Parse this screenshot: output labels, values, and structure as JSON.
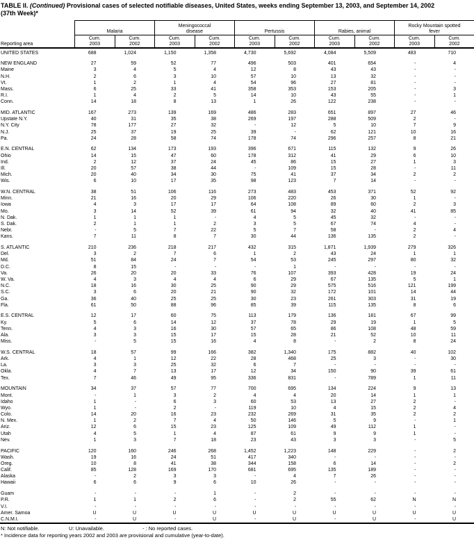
{
  "title": {
    "prefix": "TABLE II.",
    "continued": "(Continued)",
    "rest": "Provisional cases of selected notifiable diseases, United States, weeks ending September 13, 2003, and September 14, 2002",
    "week": "(37th Week)*"
  },
  "table": {
    "stub_header": "Reporting area",
    "cum_label": "Cum.",
    "sub_years": [
      "2003",
      "2002"
    ],
    "column_groups": [
      {
        "label": "Malaria"
      },
      {
        "label": "Meningococcal disease"
      },
      {
        "label": "Pertussis"
      },
      {
        "label": "Rabies, animal"
      },
      {
        "label": "Rocky Mountain spotted fever"
      }
    ],
    "rows": [
      {
        "area": "UNITED STATES",
        "values": [
          "688",
          "1,024",
          "1,150",
          "1,358",
          "4,730",
          "5,692",
          "4,084",
          "5,509",
          "483",
          "710"
        ]
      },
      {
        "area": "NEW ENGLAND",
        "gap_before": true,
        "values": [
          "27",
          "59",
          "52",
          "77",
          "496",
          "503",
          "401",
          "654",
          "-",
          "4"
        ]
      },
      {
        "area": "Maine",
        "values": [
          "3",
          "4",
          "5",
          "4",
          "12",
          "8",
          "43",
          "43",
          "-",
          "-"
        ]
      },
      {
        "area": "N.H.",
        "values": [
          "2",
          "6",
          "3",
          "10",
          "57",
          "10",
          "13",
          "32",
          "-",
          "-"
        ]
      },
      {
        "area": "Vt.",
        "values": [
          "1",
          "2",
          "1",
          "4",
          "54",
          "96",
          "27",
          "81",
          "-",
          "-"
        ]
      },
      {
        "area": "Mass.",
        "values": [
          "6",
          "25",
          "33",
          "41",
          "358",
          "353",
          "153",
          "205",
          "-",
          "3"
        ]
      },
      {
        "area": "R.I.",
        "values": [
          "1",
          "4",
          "2",
          "5",
          "14",
          "10",
          "43",
          "55",
          "-",
          "1"
        ]
      },
      {
        "area": "Conn.",
        "values": [
          "14",
          "18",
          "8",
          "13",
          "1",
          "26",
          "122",
          "238",
          "-",
          "-"
        ]
      },
      {
        "area": "MID. ATLANTIC",
        "gap_before": true,
        "values": [
          "167",
          "273",
          "139",
          "169",
          "486",
          "283",
          "651",
          "897",
          "27",
          "46"
        ]
      },
      {
        "area": "Upstate N.Y.",
        "values": [
          "40",
          "31",
          "35",
          "38",
          "269",
          "197",
          "288",
          "509",
          "2",
          "-"
        ]
      },
      {
        "area": "N.Y. City",
        "values": [
          "78",
          "177",
          "27",
          "32",
          "-",
          "12",
          "5",
          "10",
          "7",
          "9"
        ]
      },
      {
        "area": "N.J.",
        "values": [
          "25",
          "37",
          "19",
          "25",
          "39",
          "-",
          "62",
          "121",
          "10",
          "16"
        ]
      },
      {
        "area": "Pa.",
        "values": [
          "24",
          "28",
          "58",
          "74",
          "178",
          "74",
          "296",
          "257",
          "8",
          "21"
        ]
      },
      {
        "area": "E.N. CENTRAL",
        "gap_before": true,
        "values": [
          "62",
          "134",
          "173",
          "193",
          "396",
          "671",
          "115",
          "132",
          "9",
          "26"
        ]
      },
      {
        "area": "Ohio",
        "values": [
          "14",
          "15",
          "47",
          "60",
          "178",
          "312",
          "41",
          "29",
          "6",
          "10"
        ]
      },
      {
        "area": "Ind.",
        "values": [
          "2",
          "12",
          "37",
          "24",
          "45",
          "86",
          "15",
          "27",
          "1",
          "3"
        ]
      },
      {
        "area": "Ill.",
        "values": [
          "20",
          "57",
          "38",
          "44",
          "-",
          "109",
          "15",
          "28",
          "-",
          "11"
        ]
      },
      {
        "area": "Mich.",
        "values": [
          "20",
          "40",
          "34",
          "30",
          "75",
          "41",
          "37",
          "34",
          "2",
          "2"
        ]
      },
      {
        "area": "Wis.",
        "values": [
          "6",
          "10",
          "17",
          "35",
          "98",
          "123",
          "7",
          "14",
          "-",
          "-"
        ]
      },
      {
        "area": "W.N. CENTRAL",
        "gap_before": true,
        "values": [
          "38",
          "51",
          "106",
          "116",
          "273",
          "483",
          "453",
          "371",
          "52",
          "92"
        ]
      },
      {
        "area": "Minn.",
        "values": [
          "21",
          "16",
          "20",
          "29",
          "106",
          "220",
          "26",
          "30",
          "1",
          "-"
        ]
      },
      {
        "area": "Iowa",
        "values": [
          "4",
          "3",
          "17",
          "17",
          "64",
          "108",
          "89",
          "60",
          "2",
          "3"
        ]
      },
      {
        "area": "Mo.",
        "values": [
          "3",
          "14",
          "52",
          "39",
          "61",
          "94",
          "32",
          "40",
          "41",
          "85"
        ]
      },
      {
        "area": "N. Dak.",
        "values": [
          "1",
          "1",
          "1",
          "-",
          "4",
          "5",
          "45",
          "32",
          "-",
          "-"
        ]
      },
      {
        "area": "S. Dak.",
        "values": [
          "2",
          "1",
          "1",
          "2",
          "3",
          "5",
          "67",
          "74",
          "4",
          "-"
        ]
      },
      {
        "area": "Nebr.",
        "values": [
          "-",
          "5",
          "7",
          "22",
          "5",
          "7",
          "58",
          "-",
          "2",
          "4"
        ]
      },
      {
        "area": "Kans.",
        "values": [
          "7",
          "11",
          "8",
          "7",
          "30",
          "44",
          "136",
          "135",
          "2",
          "-"
        ]
      },
      {
        "area": "S. ATLANTIC",
        "gap_before": true,
        "values": [
          "210",
          "236",
          "218",
          "217",
          "432",
          "315",
          "1,871",
          "1,939",
          "279",
          "326"
        ]
      },
      {
        "area": "Del.",
        "values": [
          "3",
          "2",
          "7",
          "6",
          "1",
          "2",
          "43",
          "24",
          "1",
          "1"
        ]
      },
      {
        "area": "Md.",
        "values": [
          "51",
          "84",
          "24",
          "7",
          "54",
          "53",
          "245",
          "297",
          "80",
          "32"
        ]
      },
      {
        "area": "D.C.",
        "values": [
          "8",
          "15",
          "-",
          "-",
          "-",
          "1",
          "-",
          "-",
          "-",
          "-"
        ]
      },
      {
        "area": "Va.",
        "values": [
          "26",
          "20",
          "20",
          "33",
          "76",
          "107",
          "393",
          "428",
          "19",
          "24"
        ]
      },
      {
        "area": "W. Va.",
        "values": [
          "4",
          "3",
          "4",
          "4",
          "6",
          "29",
          "67",
          "135",
          "5",
          "1"
        ]
      },
      {
        "area": "N.C.",
        "values": [
          "18",
          "16",
          "30",
          "25",
          "90",
          "29",
          "575",
          "516",
          "121",
          "199"
        ]
      },
      {
        "area": "S.C.",
        "values": [
          "3",
          "6",
          "20",
          "21",
          "90",
          "32",
          "172",
          "101",
          "14",
          "44"
        ]
      },
      {
        "area": "Ga.",
        "values": [
          "36",
          "40",
          "25",
          "25",
          "30",
          "23",
          "261",
          "303",
          "31",
          "19"
        ]
      },
      {
        "area": "Fla.",
        "values": [
          "61",
          "50",
          "88",
          "96",
          "85",
          "39",
          "115",
          "135",
          "8",
          "6"
        ]
      },
      {
        "area": "E.S. CENTRAL",
        "gap_before": true,
        "values": [
          "12",
          "17",
          "60",
          "75",
          "113",
          "179",
          "136",
          "181",
          "67",
          "99"
        ]
      },
      {
        "area": "Ky.",
        "values": [
          "5",
          "6",
          "14",
          "12",
          "37",
          "78",
          "29",
          "19",
          "1",
          "5"
        ]
      },
      {
        "area": "Tenn.",
        "values": [
          "4",
          "3",
          "16",
          "30",
          "57",
          "65",
          "86",
          "108",
          "48",
          "59"
        ]
      },
      {
        "area": "Ala.",
        "values": [
          "3",
          "3",
          "15",
          "17",
          "15",
          "28",
          "21",
          "52",
          "10",
          "11"
        ]
      },
      {
        "area": "Miss.",
        "values": [
          "-",
          "5",
          "15",
          "16",
          "4",
          "8",
          "-",
          "2",
          "8",
          "24"
        ]
      },
      {
        "area": "W.S. CENTRAL",
        "gap_before": true,
        "values": [
          "18",
          "57",
          "99",
          "166",
          "382",
          "1,340",
          "175",
          "882",
          "40",
          "102"
        ]
      },
      {
        "area": "Ark.",
        "values": [
          "4",
          "1",
          "12",
          "22",
          "28",
          "468",
          "25",
          "3",
          "-",
          "30"
        ]
      },
      {
        "area": "La.",
        "values": [
          "3",
          "3",
          "25",
          "32",
          "6",
          "7",
          "-",
          "-",
          "-",
          "-"
        ]
      },
      {
        "area": "Okla.",
        "values": [
          "4",
          "7",
          "13",
          "17",
          "12",
          "34",
          "150",
          "90",
          "39",
          "61"
        ]
      },
      {
        "area": "Tex.",
        "values": [
          "7",
          "46",
          "49",
          "95",
          "336",
          "831",
          "-",
          "789",
          "1",
          "11"
        ]
      },
      {
        "area": "MOUNTAIN",
        "gap_before": true,
        "values": [
          "34",
          "37",
          "57",
          "77",
          "700",
          "695",
          "134",
          "224",
          "9",
          "13"
        ]
      },
      {
        "area": "Mont.",
        "values": [
          "-",
          "1",
          "3",
          "2",
          "4",
          "4",
          "20",
          "14",
          "1",
          "1"
        ]
      },
      {
        "area": "Idaho",
        "values": [
          "1",
          "-",
          "6",
          "3",
          "60",
          "53",
          "13",
          "27",
          "2",
          "-"
        ]
      },
      {
        "area": "Wyo.",
        "values": [
          "1",
          "-",
          "2",
          "-",
          "119",
          "10",
          "4",
          "15",
          "2",
          "4"
        ]
      },
      {
        "area": "Colo.",
        "values": [
          "14",
          "20",
          "16",
          "23",
          "232",
          "269",
          "31",
          "35",
          "2",
          "2"
        ]
      },
      {
        "area": "N. Mex.",
        "values": [
          "1",
          "2",
          "7",
          "4",
          "50",
          "146",
          "5",
          "9",
          "-",
          "1"
        ]
      },
      {
        "area": "Ariz.",
        "values": [
          "12",
          "6",
          "15",
          "23",
          "125",
          "109",
          "49",
          "112",
          "1",
          "-"
        ]
      },
      {
        "area": "Utah",
        "values": [
          "4",
          "5",
          "1",
          "4",
          "87",
          "61",
          "9",
          "9",
          "1",
          "-"
        ]
      },
      {
        "area": "Nev.",
        "values": [
          "1",
          "3",
          "7",
          "18",
          "23",
          "43",
          "3",
          "3",
          "-",
          "5"
        ]
      },
      {
        "area": "PACIFIC",
        "gap_before": true,
        "values": [
          "120",
          "160",
          "246",
          "268",
          "1,452",
          "1,223",
          "148",
          "229",
          "-",
          "2"
        ]
      },
      {
        "area": "Wash.",
        "values": [
          "19",
          "16",
          "24",
          "51",
          "417",
          "340",
          "-",
          "-",
          "-",
          "-"
        ]
      },
      {
        "area": "Oreg.",
        "values": [
          "10",
          "8",
          "41",
          "38",
          "344",
          "158",
          "6",
          "14",
          "-",
          "2"
        ]
      },
      {
        "area": "Calif.",
        "values": [
          "85",
          "128",
          "169",
          "170",
          "681",
          "695",
          "135",
          "189",
          "-",
          "-"
        ]
      },
      {
        "area": "Alaska",
        "values": [
          "-",
          "2",
          "3",
          "3",
          "-",
          "4",
          "7",
          "26",
          "-",
          "-"
        ]
      },
      {
        "area": "Hawaii",
        "values": [
          "6",
          "6",
          "9",
          "6",
          "10",
          "26",
          "-",
          "-",
          "-",
          "-"
        ]
      },
      {
        "area": "Guam",
        "gap_before": true,
        "values": [
          "-",
          "-",
          "-",
          "1",
          "-",
          "2",
          "-",
          "-",
          "-",
          "-"
        ]
      },
      {
        "area": "P.R.",
        "values": [
          "1",
          "1",
          "2",
          "6",
          "-",
          "2",
          "55",
          "62",
          "N",
          "N"
        ]
      },
      {
        "area": "V.I.",
        "values": [
          "-",
          "-",
          "-",
          "-",
          "-",
          "-",
          "-",
          "-",
          "-",
          "-"
        ]
      },
      {
        "area": "Amer. Samoa",
        "values": [
          "U",
          "U",
          "U",
          "U",
          "U",
          "U",
          "U",
          "U",
          "U",
          "U"
        ]
      },
      {
        "area": "C.N.M.I.",
        "values": [
          "-",
          "U",
          "-",
          "U",
          "-",
          "U",
          "-",
          "U",
          "-",
          "U"
        ]
      }
    ]
  },
  "footnotes": {
    "legend": [
      "N: Not notifiable.",
      "U: Unavailable.",
      "- : No reported cases."
    ],
    "note": "* Incidence data for reporting years 2002 and 2003 are provisional and cumulative (year-to-date)."
  }
}
